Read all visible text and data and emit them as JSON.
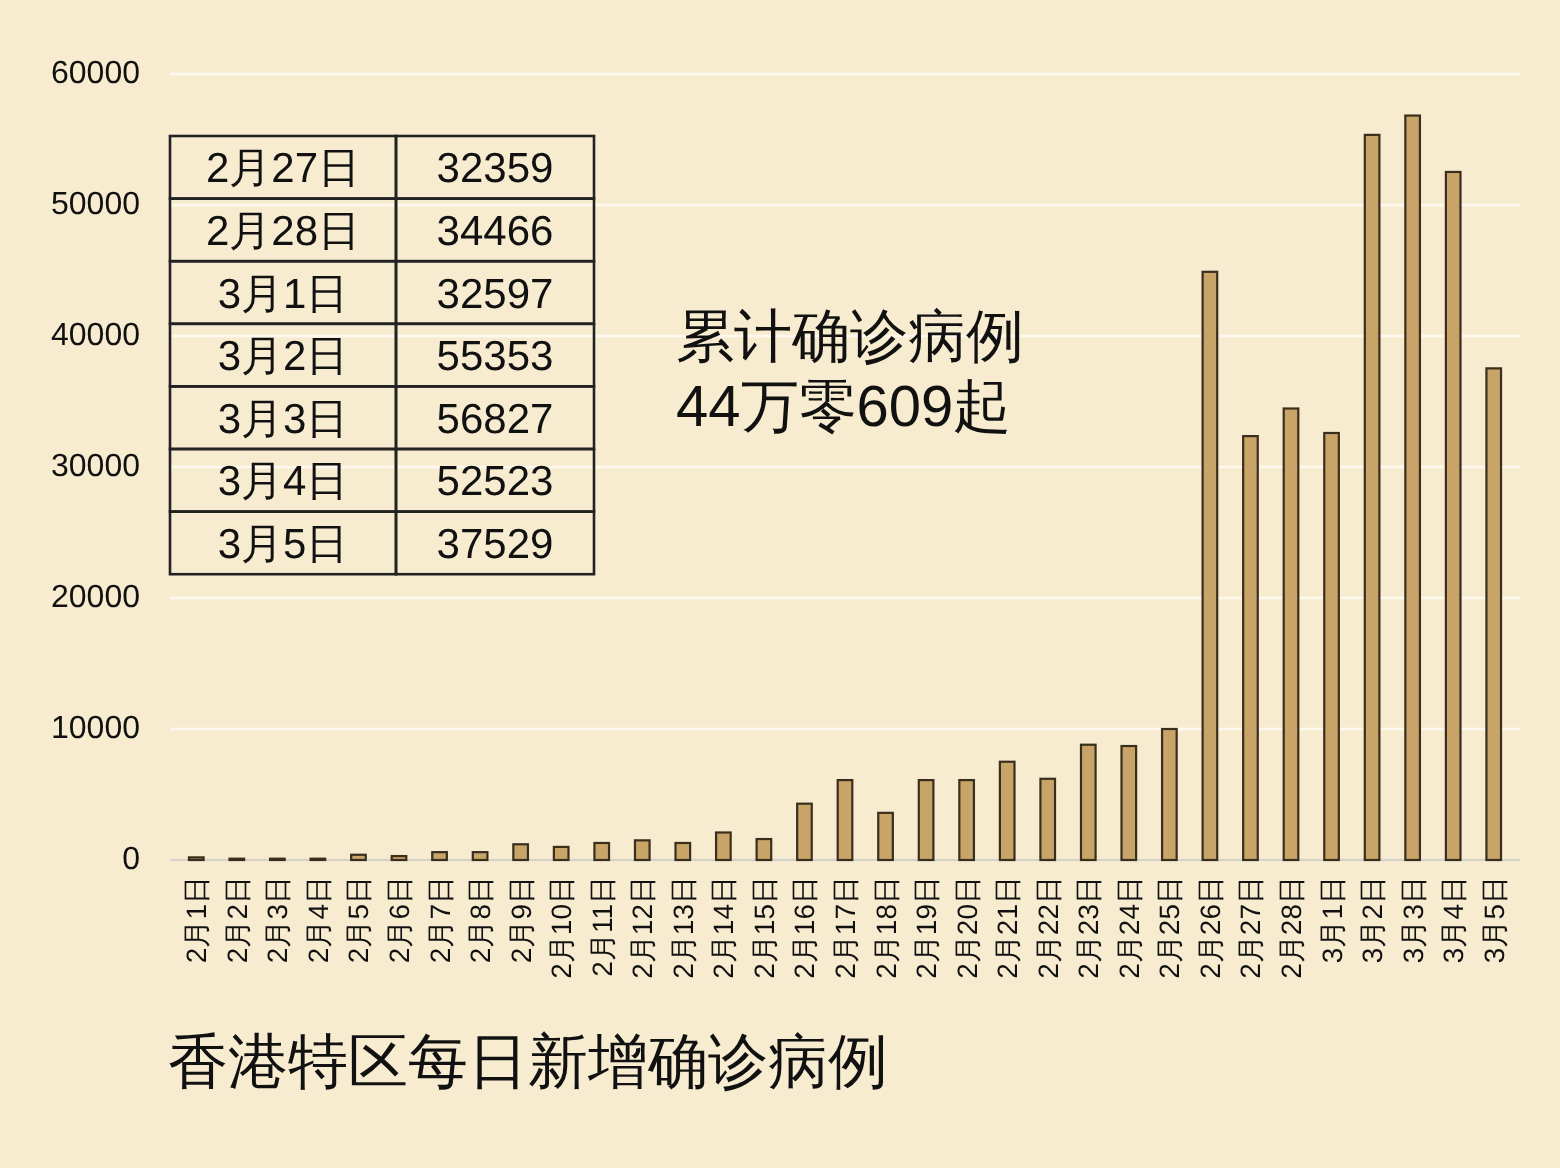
{
  "chart_data": [
    {
      "type": "bar",
      "title": "香港特区每日新增确诊病例",
      "annotations": [
        "累计确诊病例\n44万零609起"
      ],
      "categories": [
        "2月1日",
        "2月2日",
        "2月3日",
        "2月4日",
        "2月5日",
        "2月6日",
        "2月7日",
        "2月8日",
        "2月9日",
        "2月10日",
        "2月11日",
        "2月12日",
        "2月13日",
        "2月14日",
        "2月15日",
        "2月16日",
        "2月17日",
        "2月18日",
        "2月19日",
        "2月20日",
        "2月21日",
        "2月22日",
        "2月23日",
        "2月24日",
        "2月25日",
        "2月26日",
        "2月27日",
        "2月28日",
        "3月1日",
        "3月2日",
        "3月3日",
        "3月4日",
        "3月5日"
      ],
      "values": [
        200,
        100,
        100,
        100,
        400,
        300,
        600,
        600,
        1200,
        1000,
        1300,
        1500,
        1300,
        2100,
        1600,
        4300,
        6100,
        3600,
        6100,
        6100,
        7500,
        6200,
        8800,
        8700,
        10000,
        44900,
        32359,
        34466,
        32597,
        55353,
        56827,
        52523,
        37529
      ],
      "color": "#c8a468",
      "ylim": [
        0,
        60000
      ],
      "yticks": [
        0,
        10000,
        20000,
        30000,
        40000,
        50000,
        60000
      ],
      "grid": "y"
    },
    {
      "type": "other",
      "categories": [
        "2月27日",
        "2月28日",
        "3月1日",
        "3月2日",
        "3月3日",
        "3月4日",
        "3月5日"
      ],
      "values": [
        32359,
        34466,
        32597,
        55353,
        56827,
        52523,
        37529
      ],
      "data_labels": true
    }
  ]
}
